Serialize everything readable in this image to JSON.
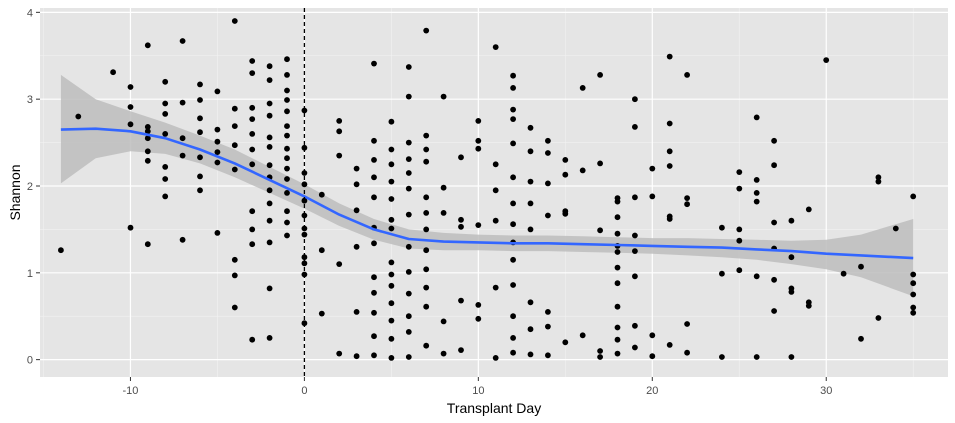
{
  "chart_data": {
    "type": "scatter",
    "title": "",
    "xlabel": "Transplant Day",
    "ylabel": "Shannon",
    "xlim": [
      -15.2,
      37.0
    ],
    "ylim": [
      -0.2,
      4.05
    ],
    "xticks": [
      -10,
      0,
      10,
      20,
      30
    ],
    "yticks": [
      0,
      1,
      2,
      3,
      4
    ],
    "grid": true,
    "legend": "none",
    "vline": {
      "x": 0,
      "style": "dashed"
    },
    "colors": {
      "panel": "#e5e5e5",
      "grid_major": "#ffffff",
      "grid_minor": "#f2f2f2",
      "point": "#000000",
      "smooth": "#3366ff",
      "ribbon": "#bdbdbd",
      "tick_label": "#4d4d4d"
    },
    "series": [
      {
        "kind": "points",
        "x": [
          -14,
          -13,
          -11,
          -10,
          -10,
          -10,
          -10,
          -9,
          -9,
          -9,
          -9,
          -9,
          -9,
          -9,
          -8,
          -8,
          -8,
          -8,
          -8,
          -8,
          -8,
          -7,
          -7,
          -7,
          -7,
          -7,
          -6,
          -6,
          -6,
          -6,
          -6,
          -6,
          -6,
          -5,
          -5,
          -5,
          -5,
          -5,
          -5,
          -4,
          -4,
          -4,
          -4,
          -4,
          -4,
          -4,
          -4,
          -3,
          -3,
          -3,
          -3,
          -3,
          -3,
          -3,
          -3,
          -3,
          -3,
          -3,
          -2,
          -2,
          -2,
          -2,
          -2,
          -2,
          -2,
          -2,
          -2,
          -2,
          -2,
          -2,
          -2,
          -2,
          -1,
          -1,
          -1,
          -1,
          -1,
          -1,
          -1,
          -1,
          -1,
          -1,
          -1,
          -1,
          -1,
          -1,
          -1,
          0,
          0,
          0,
          0,
          0,
          0,
          0,
          0,
          0,
          0,
          0,
          0,
          1,
          1,
          1,
          2,
          2,
          2,
          2,
          2,
          3,
          3,
          3,
          3,
          3,
          3,
          4,
          4,
          4,
          4,
          4,
          4,
          4,
          4,
          4,
          4,
          4,
          4,
          5,
          5,
          5,
          5,
          5,
          5,
          5,
          5,
          5,
          5,
          5,
          5,
          5,
          5,
          6,
          6,
          6,
          6,
          6,
          6,
          6,
          6,
          6,
          6,
          6,
          6,
          6,
          7,
          7,
          7,
          7,
          7,
          7,
          7,
          7,
          7,
          7,
          7,
          7,
          8,
          8,
          8,
          8,
          8,
          9,
          9,
          9,
          9,
          9,
          10,
          10,
          10,
          10,
          10,
          10,
          11,
          11,
          11,
          11,
          11,
          11,
          12,
          12,
          12,
          12,
          12,
          12,
          12,
          12,
          12,
          12,
          12,
          12,
          12,
          12,
          13,
          13,
          13,
          13,
          13,
          13,
          13,
          13,
          14,
          14,
          14,
          14,
          14,
          14,
          14,
          15,
          15,
          15,
          15,
          15,
          16,
          16,
          16,
          17,
          17,
          17,
          17,
          17,
          18,
          18,
          18,
          18,
          18,
          18,
          18,
          18,
          18,
          18,
          18,
          18,
          19,
          19,
          19,
          19,
          19,
          19,
          19,
          19,
          20,
          20,
          20,
          20,
          21,
          21,
          21,
          21,
          21,
          21,
          21,
          22,
          22,
          22,
          22,
          22,
          24,
          24,
          24,
          25,
          25,
          25,
          25,
          25,
          26,
          26,
          26,
          26,
          26,
          26,
          27,
          27,
          27,
          27,
          27,
          27,
          28,
          28,
          28,
          28,
          28,
          29,
          29,
          29,
          30,
          31,
          32,
          32,
          33,
          33,
          33,
          34,
          35,
          35,
          35,
          35,
          35,
          35
        ],
        "y": [
          1.26,
          2.8,
          3.31,
          3.14,
          2.91,
          2.71,
          1.52,
          3.62,
          2.68,
          2.63,
          2.55,
          2.4,
          2.29,
          1.33,
          3.2,
          2.95,
          2.83,
          2.6,
          2.22,
          2.08,
          1.88,
          3.67,
          2.96,
          2.55,
          2.35,
          1.38,
          3.17,
          2.99,
          2.78,
          2.62,
          2.33,
          2.11,
          1.95,
          3.09,
          2.65,
          2.51,
          2.39,
          2.27,
          1.46,
          3.9,
          2.89,
          2.69,
          2.47,
          2.19,
          1.15,
          0.97,
          0.6,
          3.44,
          3.3,
          2.9,
          2.77,
          2.6,
          2.42,
          2.25,
          1.71,
          1.5,
          1.33,
          0.23,
          3.38,
          3.22,
          2.95,
          2.81,
          2.56,
          2.45,
          2.24,
          2.1,
          1.95,
          1.8,
          1.6,
          1.35,
          0.82,
          0.25,
          3.46,
          3.28,
          3.1,
          2.99,
          2.86,
          2.69,
          2.58,
          2.43,
          2.32,
          2.2,
          2.08,
          1.92,
          1.71,
          1.58,
          1.43,
          2.87,
          2.44,
          2.15,
          2.02,
          1.83,
          1.66,
          1.51,
          1.44,
          1.18,
          1.11,
          0.98,
          0.42,
          1.9,
          1.26,
          0.53,
          2.75,
          2.63,
          2.35,
          1.1,
          0.07,
          2.2,
          2.02,
          1.72,
          1.3,
          0.55,
          0.04,
          3.41,
          2.52,
          2.3,
          2.1,
          1.87,
          1.52,
          1.34,
          0.95,
          0.77,
          0.54,
          0.27,
          0.05,
          2.74,
          2.42,
          2.25,
          2.05,
          1.85,
          1.61,
          1.51,
          1.12,
          0.98,
          0.85,
          0.65,
          0.45,
          0.24,
          0.02,
          3.37,
          3.03,
          2.5,
          2.31,
          2.15,
          1.97,
          1.67,
          1.3,
          1.01,
          0.76,
          0.5,
          0.32,
          0.03,
          3.79,
          2.58,
          2.42,
          2.28,
          1.87,
          1.69,
          1.5,
          1.26,
          1.04,
          0.83,
          0.61,
          0.16,
          3.03,
          1.98,
          1.69,
          0.44,
          0.07,
          2.33,
          1.61,
          1.53,
          0.68,
          0.11,
          2.75,
          2.52,
          2.43,
          1.55,
          0.63,
          0.47,
          3.6,
          2.25,
          1.95,
          1.6,
          0.83,
          0.02,
          3.27,
          3.13,
          2.88,
          2.77,
          2.49,
          2.1,
          1.8,
          1.56,
          1.35,
          1.15,
          0.86,
          0.5,
          0.25,
          0.08,
          2.67,
          2.4,
          2.05,
          1.8,
          1.5,
          0.66,
          0.35,
          0.06,
          2.52,
          2.38,
          2.03,
          1.66,
          0.55,
          0.38,
          0.05,
          2.3,
          2.13,
          1.71,
          1.68,
          0.2,
          3.13,
          2.18,
          0.28,
          3.28,
          2.26,
          1.49,
          0.1,
          0.03,
          1.86,
          1.82,
          1.64,
          1.45,
          1.31,
          1.24,
          1.06,
          0.88,
          0.61,
          0.37,
          0.23,
          0.07,
          3.0,
          2.68,
          1.87,
          1.43,
          1.25,
          0.96,
          0.39,
          0.14,
          2.2,
          1.88,
          0.28,
          0.04,
          3.49,
          2.72,
          2.4,
          2.23,
          1.65,
          1.62,
          0.17,
          3.28,
          1.86,
          1.79,
          0.41,
          0.08,
          1.52,
          0.99,
          0.03,
          2.16,
          1.97,
          1.5,
          1.37,
          1.03,
          2.79,
          2.07,
          1.92,
          1.82,
          0.96,
          0.03,
          2.52,
          2.24,
          1.58,
          1.28,
          0.92,
          0.56,
          1.6,
          1.18,
          0.82,
          0.78,
          0.03,
          1.73,
          0.66,
          0.62,
          3.45,
          0.99,
          1.07,
          0.24,
          2.1,
          2.05,
          0.48,
          1.51,
          1.88,
          0.98,
          0.88,
          0.75,
          0.6,
          0.54
        ]
      },
      {
        "kind": "smooth",
        "x": [
          -14,
          -12,
          -10,
          -8,
          -6,
          -4,
          -2,
          0,
          2,
          4,
          6,
          8,
          10,
          12,
          14,
          16,
          18,
          20,
          22,
          24,
          26,
          28,
          30,
          32,
          35
        ],
        "y": [
          2.65,
          2.66,
          2.63,
          2.55,
          2.42,
          2.26,
          2.07,
          1.88,
          1.67,
          1.5,
          1.39,
          1.36,
          1.35,
          1.34,
          1.34,
          1.33,
          1.32,
          1.31,
          1.3,
          1.29,
          1.27,
          1.25,
          1.22,
          1.2,
          1.17
        ],
        "upper": [
          3.28,
          3.0,
          2.86,
          2.73,
          2.58,
          2.42,
          2.22,
          2.02,
          1.8,
          1.62,
          1.5,
          1.46,
          1.44,
          1.43,
          1.43,
          1.42,
          1.41,
          1.4,
          1.4,
          1.39,
          1.38,
          1.37,
          1.38,
          1.44,
          1.62
        ],
        "lower": [
          2.03,
          2.32,
          2.4,
          2.37,
          2.26,
          2.1,
          1.92,
          1.74,
          1.54,
          1.38,
          1.28,
          1.26,
          1.26,
          1.25,
          1.25,
          1.24,
          1.23,
          1.22,
          1.2,
          1.18,
          1.15,
          1.1,
          1.04,
          0.95,
          0.73
        ]
      }
    ]
  }
}
